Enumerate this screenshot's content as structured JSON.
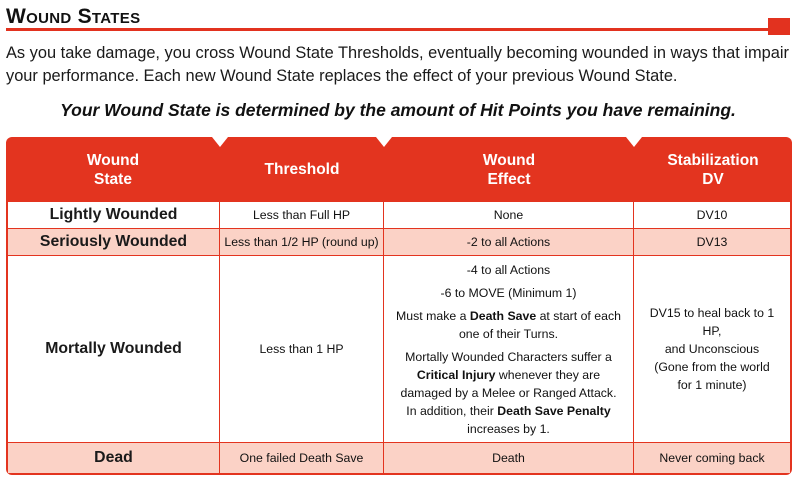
{
  "section": {
    "title": "Wound States"
  },
  "intro": "As you take damage, you cross Wound State Thresholds, eventually becoming wounded in ways that impair your performance. Each new Wound State replaces the effect of your previous Wound State.",
  "callout": "Your Wound State is determined by the amount of Hit Points you have remaining.",
  "colors": {
    "accent": "#e3341f",
    "alt_row": "#fbd2c6"
  },
  "table": {
    "headers": {
      "state_line1": "Wound",
      "state_line2": "State",
      "threshold": "Threshold",
      "effect_line1": "Wound",
      "effect_line2": "Effect",
      "dv_line1": "Stabilization",
      "dv_line2": "DV"
    },
    "rows": [
      {
        "state": "Lightly Wounded",
        "threshold": "Less than Full HP",
        "effect": "None",
        "dv": "DV10"
      },
      {
        "state": "Seriously Wounded",
        "threshold": "Less than 1/2 HP (round up)",
        "effect": "-2 to all Actions",
        "dv": "DV13"
      },
      {
        "state": "Mortally Wounded",
        "threshold": "Less than 1 HP",
        "effect_1": "-4 to all Actions",
        "effect_2": "-6 to MOVE (Minimum 1)",
        "effect_3a": "Must make a ",
        "effect_3b": "Death Save",
        "effect_3c": " at start of each one of their Turns.",
        "effect_4a": "Mortally Wounded Characters suffer a ",
        "effect_4b": "Critical Injury",
        "effect_4c": " whenever they are damaged by a Melee or Ranged Attack. In addition, their ",
        "effect_4d": "Death Save Penalty",
        "effect_4e": " increases by 1.",
        "dv_1": "DV15 to heal back to 1 HP,",
        "dv_2": "and Unconscious",
        "dv_3": "(Gone from the world",
        "dv_4": "for 1 minute)"
      },
      {
        "state": "Dead",
        "threshold": "One failed Death Save",
        "effect": "Death",
        "dv": "Never coming back"
      }
    ]
  }
}
